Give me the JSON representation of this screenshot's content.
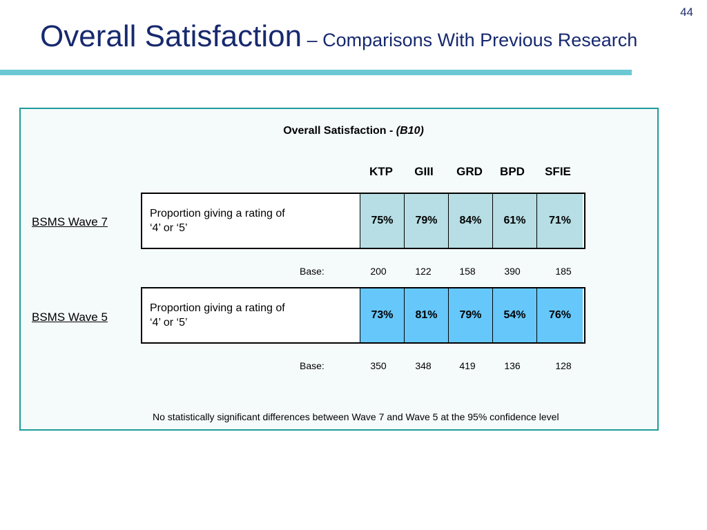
{
  "slide": {
    "page_number": "44",
    "title_main": "Overall Satisfaction",
    "title_sub": " – Comparisons With Previous Research"
  },
  "panel": {
    "title_text": "Overall Satisfaction - ",
    "title_code": "(B10)",
    "columns": [
      "KTP",
      "GIII",
      "GRD",
      "BPD",
      "SFIE"
    ],
    "base_label": "Base:",
    "footnote": "No statistically significant differences between Wave 7 and Wave 5 at the 95% confidence level"
  },
  "rows": [
    {
      "wave": "BSMS Wave 7",
      "description_line1": "Proportion giving a rating of",
      "description_line2": "‘4’ or ‘5’",
      "values": [
        "75%",
        "79%",
        "84%",
        "61%",
        "71%"
      ],
      "bases": [
        "200",
        "122",
        "158",
        "390",
        "185"
      ],
      "cell_color": "#b6dee4"
    },
    {
      "wave": "BSMS Wave 5",
      "description_line1": "Proportion giving a rating of",
      "description_line2": "‘4’ or ‘5’",
      "values": [
        "73%",
        "81%",
        "79%",
        "54%",
        "76%"
      ],
      "bases": [
        "350",
        "348",
        "419",
        "136",
        "128"
      ],
      "cell_color": "#66c7fb"
    }
  ],
  "colors": {
    "title": "#17296e",
    "rule": "#6cc8d3",
    "panel_border": "#1e9a9a"
  }
}
